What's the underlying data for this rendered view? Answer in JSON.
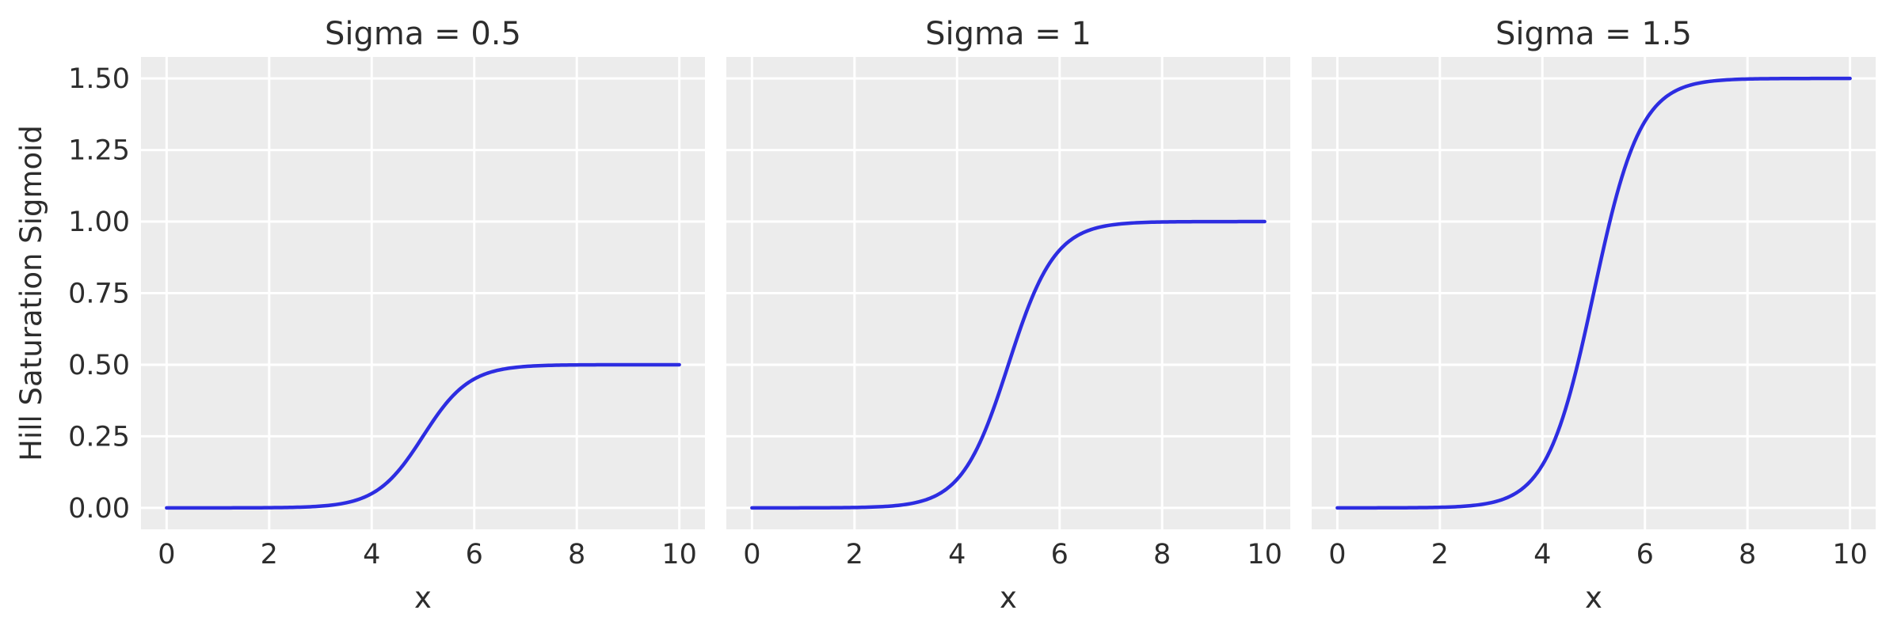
{
  "figure": {
    "background": "#ffffff"
  },
  "chart_data": {
    "type": "line",
    "title": "",
    "xlabel": "x",
    "ylabel": "Hill Saturation Sigmoid",
    "xlim": [
      -0.5,
      10.5
    ],
    "ylim": [
      -0.075,
      1.575
    ],
    "x_ticks": [
      "0",
      "2",
      "4",
      "6",
      "8",
      "10"
    ],
    "x_tick_values": [
      0,
      2,
      4,
      6,
      8,
      10
    ],
    "y_ticks": [
      "0.00",
      "0.25",
      "0.50",
      "0.75",
      "1.00",
      "1.25",
      "1.50"
    ],
    "y_tick_values": [
      0.0,
      0.25,
      0.5,
      0.75,
      1.0,
      1.25,
      1.5
    ],
    "grid": true,
    "legend": false,
    "shared_y": true,
    "curve": {
      "family": "logistic",
      "midpoint": 5,
      "steepness": 2.2,
      "x_start": 0,
      "x_end": 10
    },
    "x_sample": [
      0,
      1,
      2,
      3,
      4,
      5,
      6,
      7,
      8,
      9,
      10
    ],
    "panels": [
      {
        "title": "Sigma = 0.5",
        "sigma": 0.5,
        "values": [
          0.0,
          0.0001,
          0.0007,
          0.0061,
          0.0499,
          0.25,
          0.4501,
          0.4939,
          0.4993,
          0.4999,
          0.5
        ]
      },
      {
        "title": "Sigma = 1",
        "sigma": 1,
        "values": [
          0.0,
          0.0002,
          0.0014,
          0.0121,
          0.0998,
          0.5,
          0.9002,
          0.9879,
          0.9986,
          0.9998,
          1.0
        ]
      },
      {
        "title": "Sigma = 1.5",
        "sigma": 1.5,
        "values": [
          0.0,
          0.0002,
          0.002,
          0.0182,
          0.1496,
          0.75,
          1.3504,
          1.4818,
          1.498,
          1.4998,
          1.5
        ]
      }
    ],
    "colors": {
      "line": "#2d2de1",
      "axes_bg": "#ececec",
      "grid": "#ffffff",
      "text": "#2d2d2d",
      "figure_bg": "#ffffff"
    }
  }
}
